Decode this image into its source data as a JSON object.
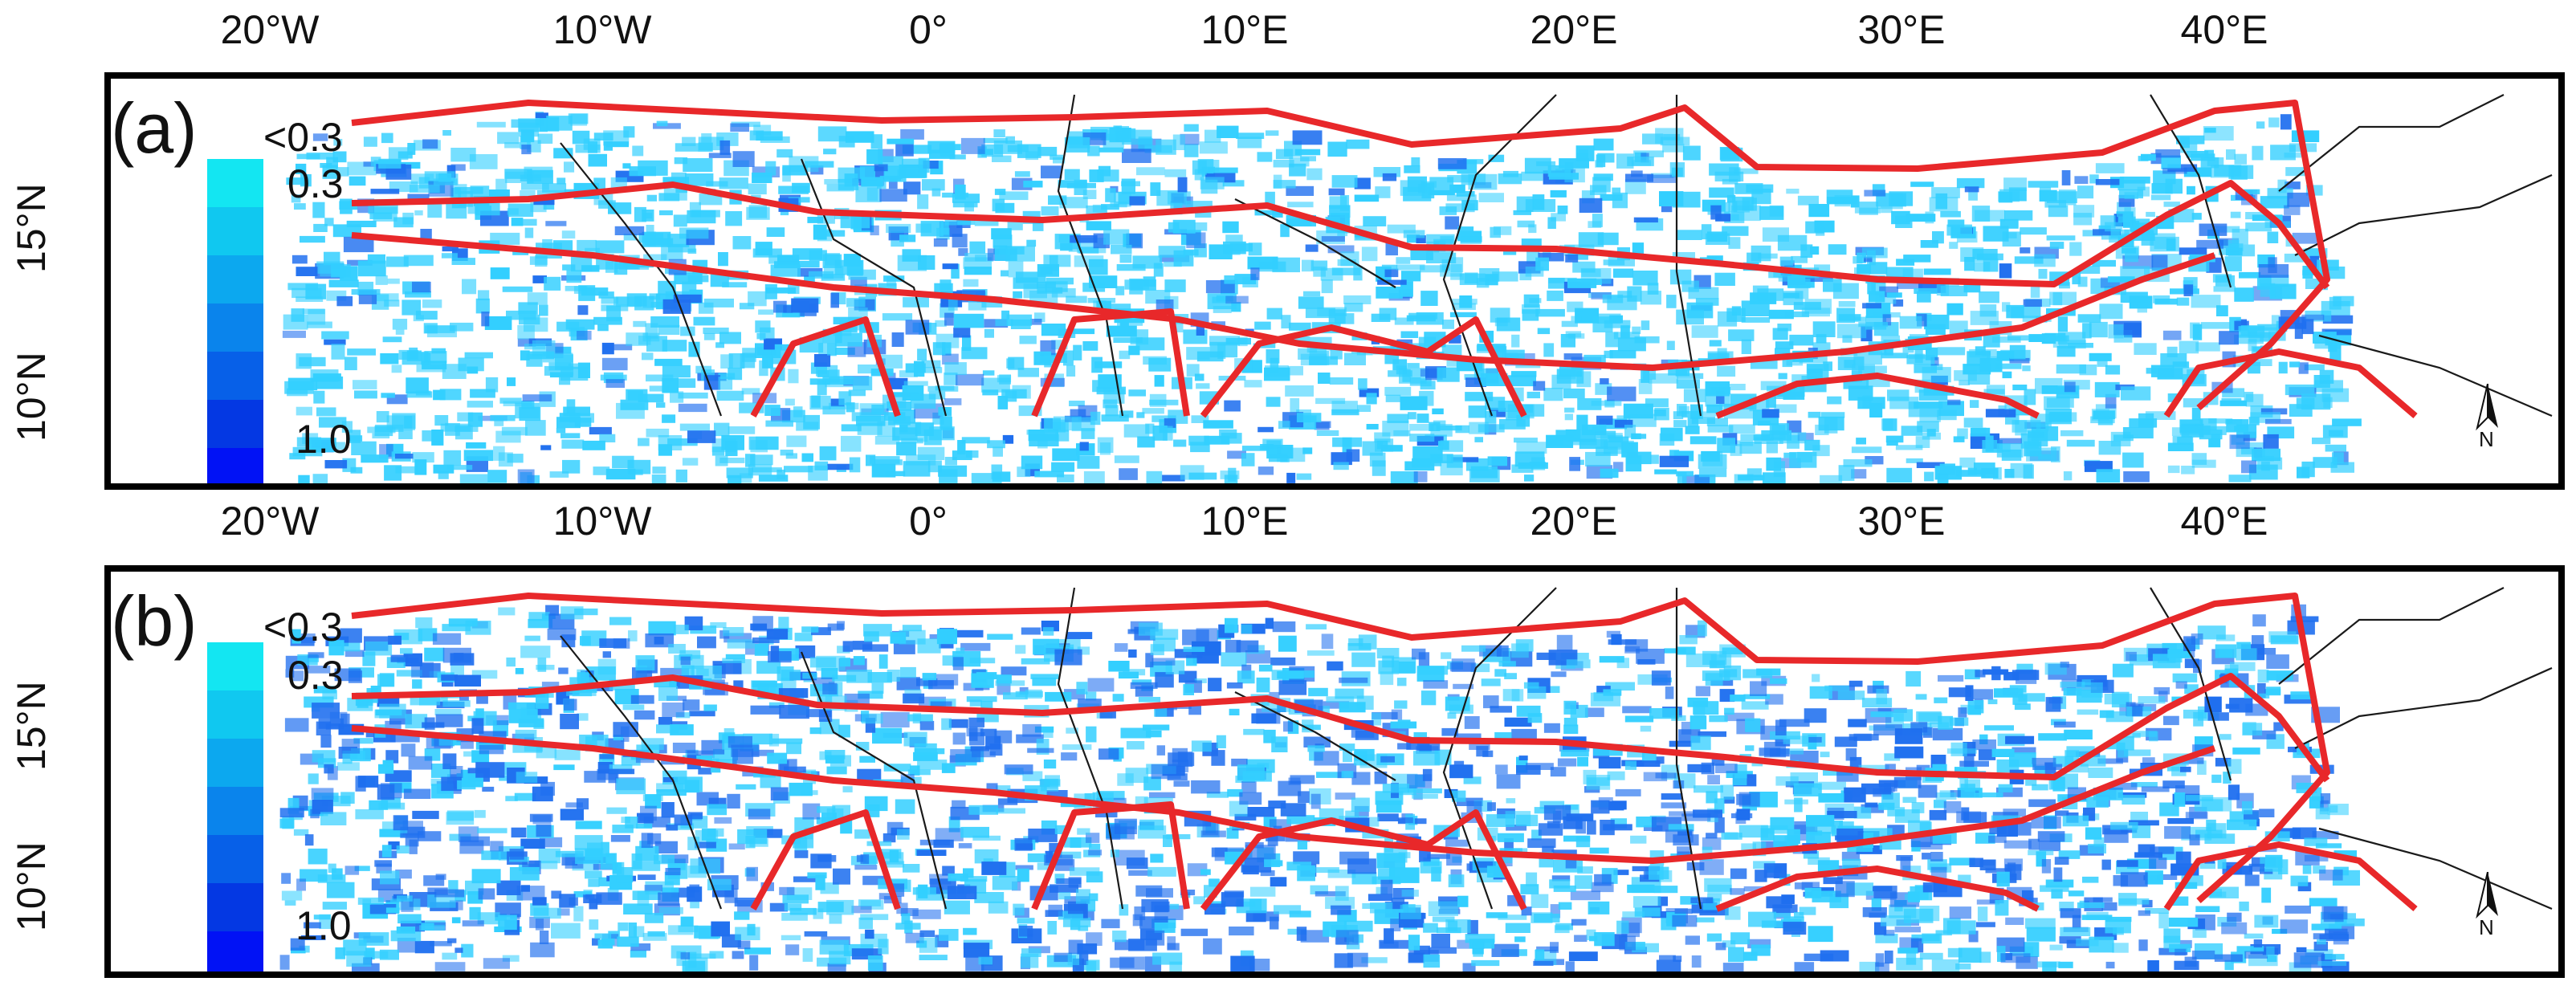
{
  "longitude_ticks": [
    "20°W",
    "10°W",
    "0°",
    "10°E",
    "20°E",
    "30°E",
    "40°E"
  ],
  "latitude_ticks": [
    "15°N",
    "10°N"
  ],
  "panels": [
    {
      "label": "(a)"
    },
    {
      "label": "(b)"
    }
  ],
  "legend": {
    "top_label": "<0.3",
    "upper_label": "0.3",
    "lower_label": "1.0",
    "colors": [
      "#13e6f2",
      "#10c8f0",
      "#0ca8ef",
      "#0a84ec",
      "#0760e8",
      "#0438e3",
      "#0112f5"
    ]
  },
  "north_arrow": {
    "label": "N"
  },
  "colors": {
    "zone_boundary": "#e8282a",
    "country_border": "#1a1a1a",
    "fill_light": "#33cfff",
    "fill_dark": "#1f6fef"
  }
}
